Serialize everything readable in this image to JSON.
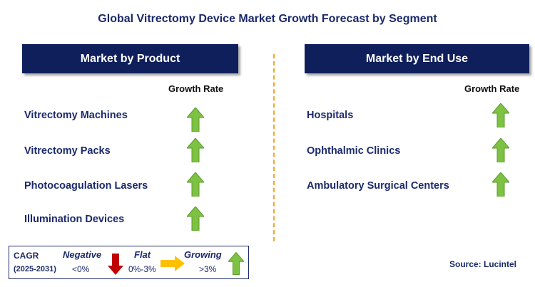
{
  "title": "Global Vitrectomy Device Market Growth Forecast by Segment",
  "left_panel": {
    "header": "Market by Product",
    "growth_label": "Growth Rate",
    "rows": [
      {
        "label": "Vitrectomy Machines",
        "trend": "growing"
      },
      {
        "label": "Vitrectomy Packs",
        "trend": "growing"
      },
      {
        "label": "Photocoagulation Lasers",
        "trend": "growing"
      },
      {
        "label": "Illumination Devices",
        "trend": "growing"
      }
    ]
  },
  "right_panel": {
    "header": "Market by End Use",
    "growth_label": "Growth Rate",
    "rows": [
      {
        "label": "Hospitals",
        "trend": "growing"
      },
      {
        "label": "Ophthalmic Clinics",
        "trend": "growing"
      },
      {
        "label": "Ambulatory Surgical Centers",
        "trend": "growing"
      }
    ]
  },
  "legend": {
    "cagr_label": "CAGR",
    "period": "(2025-2031)",
    "negative_label": "Negative",
    "negative_range": "<0%",
    "flat_label": "Flat",
    "flat_range": "0%-3%",
    "growing_label": "Growing",
    "growing_range": ">3%"
  },
  "source": "Source: Lucintel",
  "colors": {
    "header_bg": "#0f1f5c",
    "text_navy": "#1b2a6b",
    "up_arrow": "#7dc242",
    "down_arrow": "#c00000",
    "flat_arrow": "#ffc000",
    "divider": "#f5a623"
  },
  "icons": {
    "up": "green-up-arrow-icon",
    "down": "red-down-arrow-icon",
    "flat": "yellow-right-arrow-icon"
  }
}
